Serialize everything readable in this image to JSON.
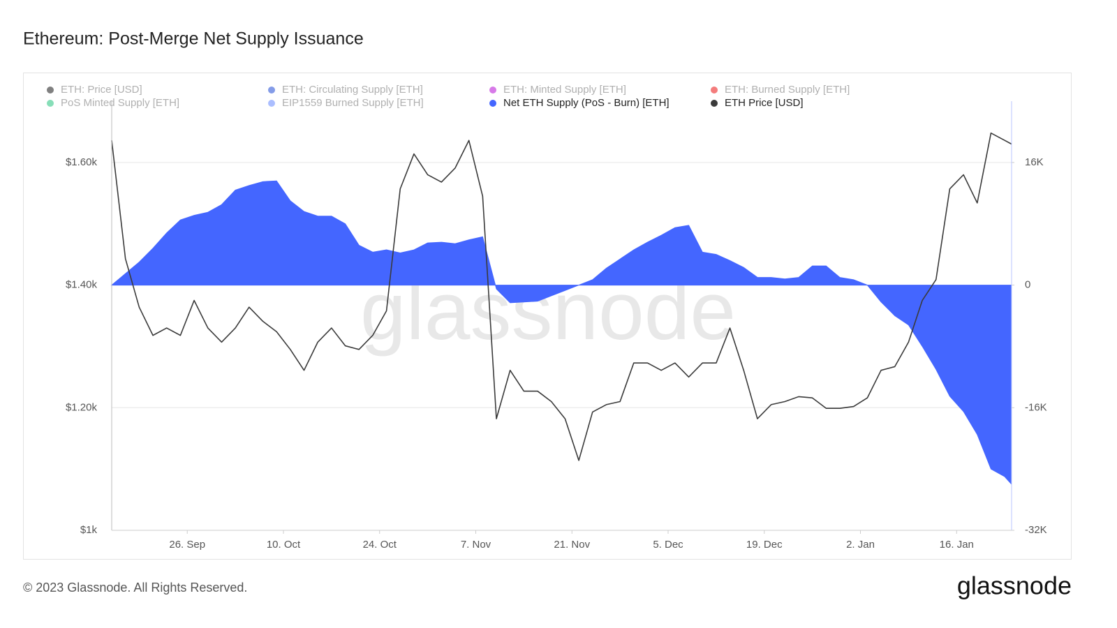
{
  "chart_data": {
    "type": "area-line",
    "title": "Ethereum: Post-Merge Net Supply Issuance",
    "watermark": "glassnode",
    "footer": "© 2023 Glassnode. All Rights Reserved.",
    "logo": "glassnode",
    "legend_hidden": [
      {
        "name": "ETH: Price [USD]",
        "color": "#555555"
      },
      {
        "name": "ETH: Circulating Supply [ETH]",
        "color": "#5b7be0"
      },
      {
        "name": "ETH: Minted Supply [ETH]",
        "color": "#c94ee0"
      },
      {
        "name": "ETH: Burned Supply [ETH]",
        "color": "#f05050"
      },
      {
        "name": "PoS Minted Supply [ETH]",
        "color": "#5fd3a0"
      },
      {
        "name": "EIP1559 Burned Supply [ETH]",
        "color": "#8fa8ff"
      }
    ],
    "x": [
      "09-15",
      "09-17",
      "09-19",
      "09-21",
      "09-23",
      "09-25",
      "09-27",
      "09-29",
      "10-01",
      "10-03",
      "10-05",
      "10-07",
      "10-09",
      "10-11",
      "10-13",
      "10-15",
      "10-17",
      "10-19",
      "10-21",
      "10-23",
      "10-25",
      "10-27",
      "10-29",
      "10-31",
      "11-02",
      "11-04",
      "11-06",
      "11-08",
      "11-10",
      "11-12",
      "11-14",
      "11-16",
      "11-18",
      "11-20",
      "11-22",
      "11-24",
      "11-26",
      "11-28",
      "11-30",
      "12-02",
      "12-04",
      "12-06",
      "12-08",
      "12-10",
      "12-12",
      "12-14",
      "12-16",
      "12-18",
      "12-20",
      "12-22",
      "12-24",
      "12-26",
      "12-28",
      "12-30",
      "01-01",
      "01-03",
      "01-05",
      "01-07",
      "01-09",
      "01-11",
      "01-13",
      "01-15",
      "01-17",
      "01-19",
      "01-21",
      "01-23",
      "01-24"
    ],
    "xlim": [
      "09-15",
      "01-24"
    ],
    "xticks": [
      {
        "value": "09-26",
        "label": "26. Sep"
      },
      {
        "value": "10-10",
        "label": "10. Oct"
      },
      {
        "value": "10-24",
        "label": "24. Oct"
      },
      {
        "value": "11-07",
        "label": "7. Nov"
      },
      {
        "value": "11-21",
        "label": "21. Nov"
      },
      {
        "value": "12-05",
        "label": "5. Dec"
      },
      {
        "value": "12-19",
        "label": "19. Dec"
      },
      {
        "value": "01-02",
        "label": "2. Jan"
      },
      {
        "value": "01-16",
        "label": "16. Jan"
      }
    ],
    "ylim": [
      1000,
      1700
    ],
    "yticks": [
      {
        "value": 1000,
        "label": "$1k"
      },
      {
        "value": 1200,
        "label": "$1.20k"
      },
      {
        "value": 1400,
        "label": "$1.40k"
      },
      {
        "value": 1600,
        "label": "$1.60k"
      }
    ],
    "y2lim": [
      -32000,
      24000
    ],
    "y2ticks": [
      {
        "value": -32000,
        "label": "-32K"
      },
      {
        "value": -16000,
        "label": "-16K"
      },
      0,
      {
        "value": 16000,
        "label": "16K"
      }
    ],
    "grid": true,
    "series": [
      {
        "name": "Net ETH Supply (PoS - Burn) [ETH]",
        "color": "#4466ff",
        "axis": "y2",
        "kind": "area",
        "values": [
          0,
          1500,
          3000,
          4800,
          6800,
          8500,
          9100,
          9500,
          10500,
          12400,
          13000,
          13500,
          13600,
          11000,
          9600,
          9000,
          9000,
          8000,
          5200,
          4300,
          4600,
          4200,
          4600,
          5500,
          5600,
          5400,
          5900,
          6300,
          -500,
          -2300,
          -2200,
          -2100,
          -1400,
          -700,
          0,
          700,
          2200,
          3400,
          4600,
          5600,
          6500,
          7500,
          7800,
          4300,
          4000,
          3200,
          2300,
          1000,
          1000,
          800,
          1000,
          2500,
          2500,
          1000,
          700,
          0,
          -2200,
          -4000,
          -5200,
          -8000,
          -11000,
          -14500,
          -16500,
          -19500,
          -24000,
          -25000,
          -26000
        ]
      },
      {
        "name": "ETH Price [USD]",
        "color": "#3a3a3a",
        "axis": "y",
        "kind": "line",
        "values": [
          1636,
          1443,
          1364,
          1318,
          1330,
          1318,
          1375,
          1330,
          1307,
          1330,
          1364,
          1341,
          1324,
          1295,
          1261,
          1307,
          1330,
          1301,
          1295,
          1318,
          1358,
          1557,
          1614,
          1580,
          1568,
          1591,
          1636,
          1545,
          1182,
          1261,
          1227,
          1227,
          1210,
          1182,
          1114,
          1193,
          1205,
          1210,
          1273,
          1273,
          1261,
          1273,
          1250,
          1273,
          1273,
          1330,
          1261,
          1182,
          1205,
          1210,
          1218,
          1216,
          1199,
          1199,
          1202,
          1216,
          1261,
          1267,
          1307,
          1375,
          1409,
          1557,
          1580,
          1534,
          1648,
          1636,
          1630
        ]
      }
    ]
  }
}
